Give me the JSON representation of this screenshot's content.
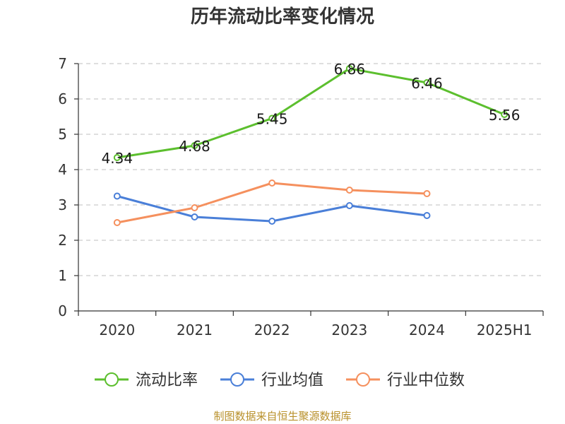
{
  "chart_data": {
    "type": "line",
    "title": "历年流动比率变化情况",
    "categories": [
      "2020",
      "2021",
      "2022",
      "2023",
      "2024",
      "2025H1"
    ],
    "ylim": [
      0,
      7
    ],
    "yticks": [
      "0",
      "1",
      "2",
      "3",
      "4",
      "5",
      "6",
      "7"
    ],
    "grid": true,
    "legend_position": "bottom",
    "series": [
      {
        "name": "流动比率",
        "color": "#5cbf2e",
        "values": [
          4.34,
          4.68,
          5.45,
          6.86,
          6.46,
          5.56
        ],
        "labels": [
          "4.34",
          "4.68",
          "5.45",
          "6.86",
          "6.46",
          "5.56"
        ]
      },
      {
        "name": "行业均值",
        "color": "#4a7fd8",
        "values": [
          3.25,
          2.66,
          2.54,
          2.98,
          2.7,
          null
        ]
      },
      {
        "name": "行业中位数",
        "color": "#f5905e",
        "values": [
          2.5,
          2.92,
          3.62,
          3.42,
          3.32,
          null
        ]
      }
    ]
  },
  "source_text": "制图数据来自恒生聚源数据库"
}
